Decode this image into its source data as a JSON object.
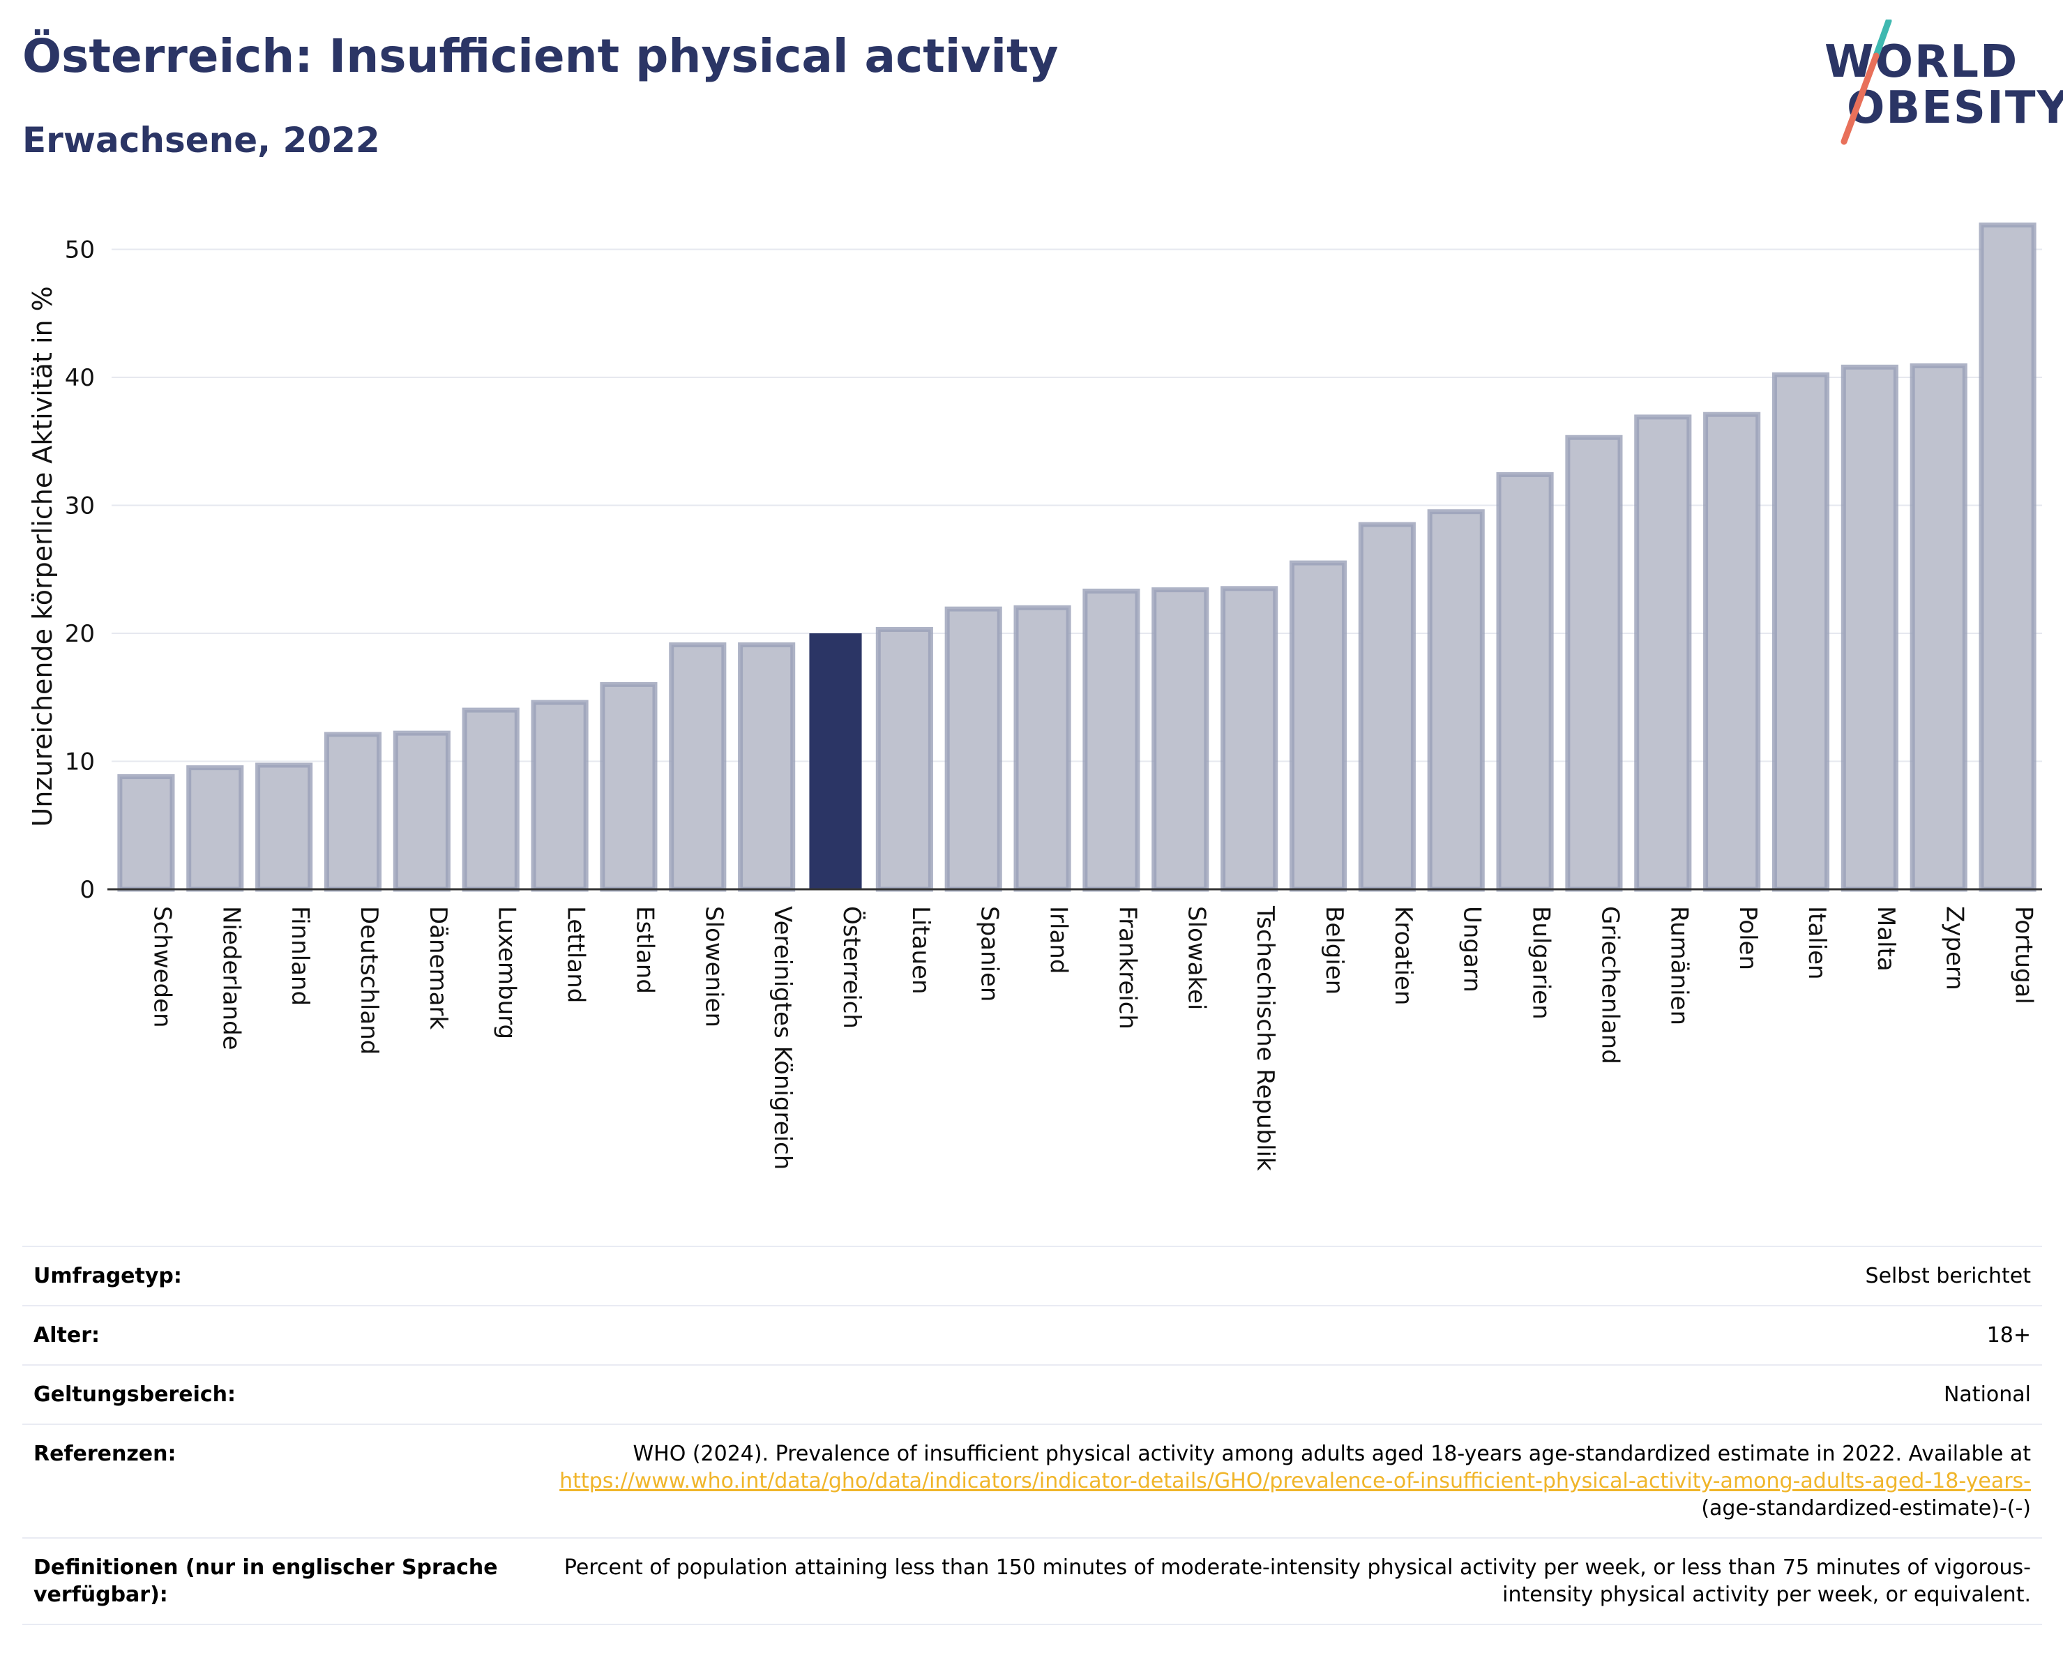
{
  "title": "Österreich: Insufficient physical activity",
  "subtitle": "Erwachsene, 2022",
  "logo": {
    "line1": "WORLD",
    "line2": "OBESITY"
  },
  "colors": {
    "highlight": "#2b3565",
    "bar": "#bfc2cf",
    "bar_border": "#9aa0b8",
    "link": "#f0b52a",
    "title": "#2b3565"
  },
  "chart_data": {
    "type": "bar",
    "title": "Österreich: Insufficient physical activity",
    "subtitle": "Erwachsene, 2022",
    "xlabel": "",
    "ylabel": "Unzureichende körperliche Aktivität in %",
    "ylim": [
      0,
      53
    ],
    "yticks": [
      0,
      10,
      20,
      30,
      40,
      50
    ],
    "grid": true,
    "highlight": "Österreich",
    "categories": [
      "Schweden",
      "Niederlande",
      "Finnland",
      "Deutschland",
      "Dänemark",
      "Luxemburg",
      "Lettland",
      "Estland",
      "Slowenien",
      "Vereinigtes Königreich",
      "Österreich",
      "Litauen",
      "Spanien",
      "Irland",
      "Frankreich",
      "Slowakei",
      "Tschechische Republik",
      "Belgien",
      "Kroatien",
      "Ungarn",
      "Bulgarien",
      "Griechenland",
      "Rumänien",
      "Polen",
      "Italien",
      "Malta",
      "Zypern",
      "Portugal"
    ],
    "values": [
      8.8,
      9.5,
      9.7,
      12.1,
      12.2,
      14.0,
      14.6,
      16.0,
      19.1,
      19.1,
      20.0,
      20.3,
      21.9,
      22.0,
      23.3,
      23.4,
      23.5,
      25.5,
      28.5,
      29.5,
      32.4,
      35.3,
      36.9,
      37.1,
      40.2,
      40.8,
      40.9,
      51.9
    ]
  },
  "table": [
    {
      "label": "Umfragetyp:",
      "value": "Selbst berichtet"
    },
    {
      "label": "Alter:",
      "value": "18+"
    },
    {
      "label": "Geltungsbereich:",
      "value": "National"
    },
    {
      "label": "Referenzen:",
      "value_before": "WHO (2024). Prevalence of insufficient physical activity among adults aged 18-years age-standardized estimate in 2022. Available at",
      "link": "https://www.who.int/data/gho/data/indicators/indicator-details/GHO/prevalence-of-insufficient-physical-activity-among-adults-aged-18-years-",
      "value_after": "(age-standardized-estimate)-(-)"
    },
    {
      "label": "Definitionen (nur in englischer Sprache verfügbar):",
      "value": "Percent of population attaining less than 150 minutes of moderate-intensity physical activity per week, or less than 75 minutes of vigorous-intensity physical activity per week, or equivalent."
    }
  ]
}
